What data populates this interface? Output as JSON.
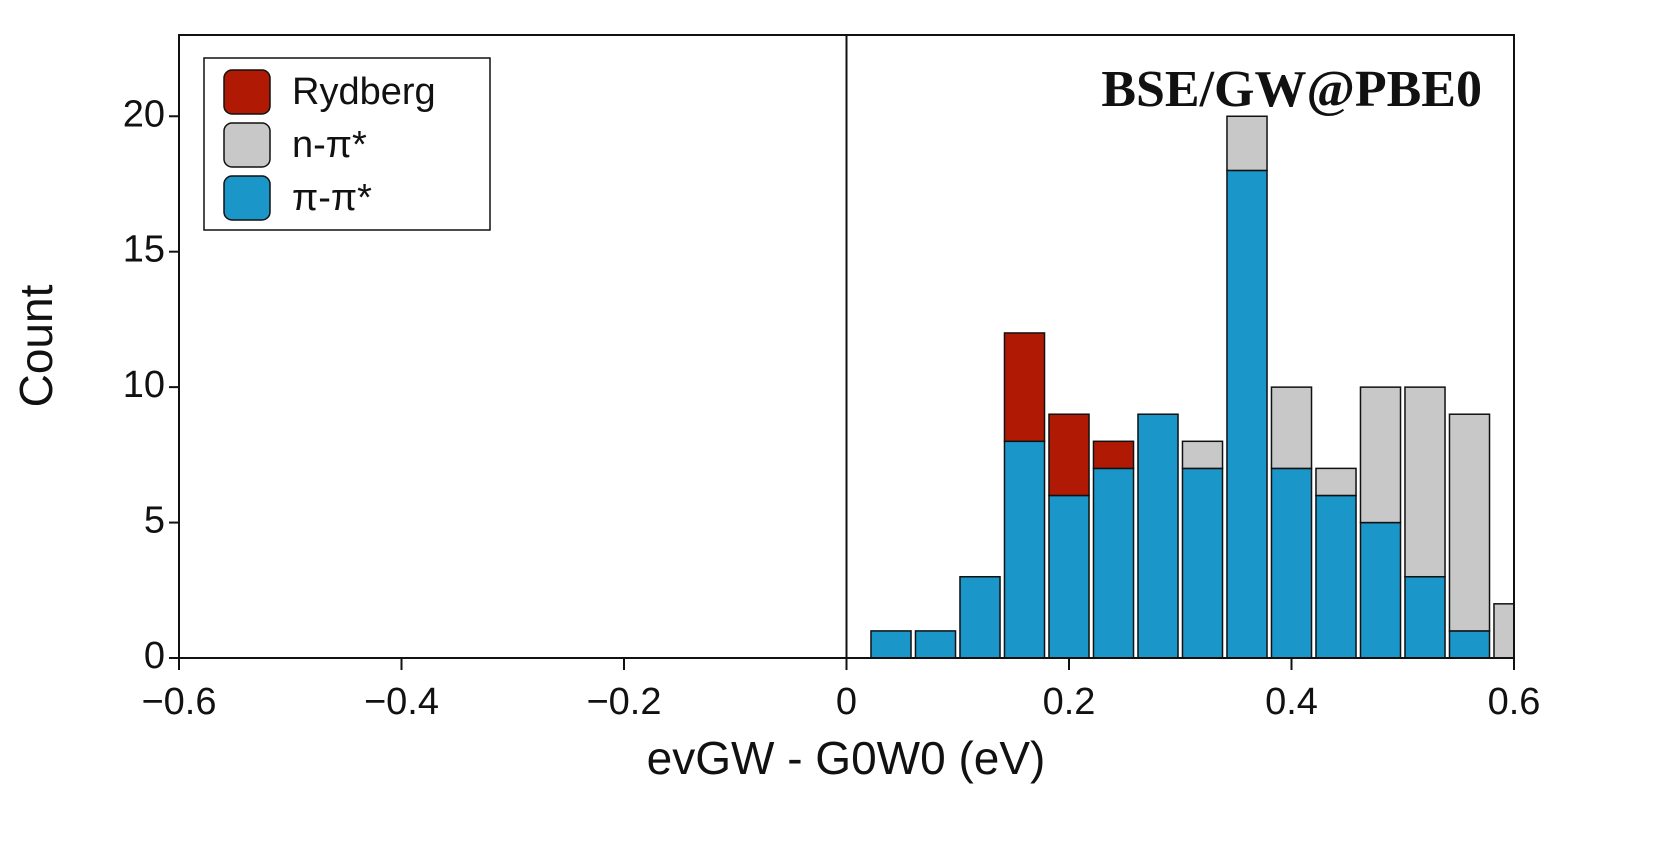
{
  "chart_data": {
    "type": "histogram",
    "title": "BSE/GW@PBE0",
    "xlabel": "evGW - G0W0 (eV)",
    "ylabel": "Count",
    "bins": [
      0.02,
      0.06,
      0.1,
      0.14,
      0.18,
      0.22,
      0.26,
      0.3,
      0.34,
      0.38,
      0.42,
      0.46,
      0.5,
      0.54,
      0.58,
      0.62
    ],
    "series": [
      {
        "name": "Rydberg",
        "color": "#b01a05",
        "values": [
          0,
          0,
          0,
          4,
          3,
          1,
          0,
          0,
          0,
          0,
          0,
          0,
          0,
          0,
          0
        ]
      },
      {
        "name": "n-π*",
        "color": "#c8c8c8",
        "values": [
          0,
          0,
          0,
          0,
          0,
          0,
          0,
          1,
          2,
          3,
          1,
          5,
          7,
          8,
          2
        ]
      },
      {
        "name": "π-π*",
        "color": "#1a96c8",
        "values": [
          1,
          1,
          3,
          8,
          6,
          7,
          9,
          7,
          18,
          7,
          6,
          5,
          3,
          1,
          0
        ]
      }
    ],
    "stacked": true,
    "xlim": [
      -0.6,
      0.6
    ],
    "xticks": [
      {
        "value": -0.6,
        "label": "−0.6"
      },
      {
        "value": -0.4,
        "label": "−0.4"
      },
      {
        "value": -0.2,
        "label": "−0.2"
      },
      0,
      0.2,
      0.4,
      0.6
    ],
    "ylim": [
      0,
      23
    ],
    "yticks": [
      0,
      5,
      10,
      15,
      20
    ],
    "vline": 0,
    "legend": "upper left"
  }
}
